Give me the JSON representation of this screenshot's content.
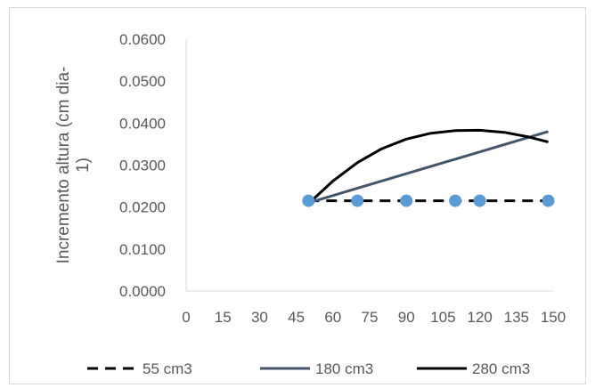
{
  "chart_data": {
    "type": "line",
    "title": "",
    "xlabel": "",
    "ylabel_lines": [
      "Incremento altura (cm dia-",
      "1)"
    ],
    "x_ticks": [
      "0",
      "15",
      "30",
      "45",
      "60",
      "75",
      "90",
      "105",
      "120",
      "135",
      "150"
    ],
    "y_ticks": [
      "0.0000",
      "0.0100",
      "0.0200",
      "0.0300",
      "0.0400",
      "0.0500",
      "0.0600"
    ],
    "xlim": [
      0,
      150
    ],
    "ylim": [
      0,
      0.06
    ],
    "grid": false,
    "legend_position": "bottom",
    "points": {
      "x": [
        50,
        70,
        90,
        110,
        120,
        148
      ],
      "y": [
        0.0215,
        0.0215,
        0.0215,
        0.0215,
        0.0215,
        0.0215
      ],
      "color": "#5b9bd5"
    },
    "series": [
      {
        "name": "55 cm3",
        "style": "dashed",
        "color": "#000000",
        "x": [
          50,
          148
        ],
        "y": [
          0.0215,
          0.0215
        ]
      },
      {
        "name": "180 cm3",
        "style": "solid",
        "color": "#44546a",
        "x": [
          50,
          148
        ],
        "y": [
          0.021,
          0.038
        ]
      },
      {
        "name": "280 cm3",
        "style": "solid",
        "color": "#000000",
        "x": [
          50,
          60,
          70,
          80,
          90,
          100,
          110,
          120,
          130,
          140,
          148
        ],
        "y": [
          0.0208,
          0.0262,
          0.0306,
          0.0339,
          0.0362,
          0.0376,
          0.0382,
          0.0383,
          0.0378,
          0.0367,
          0.0355
        ]
      }
    ]
  }
}
